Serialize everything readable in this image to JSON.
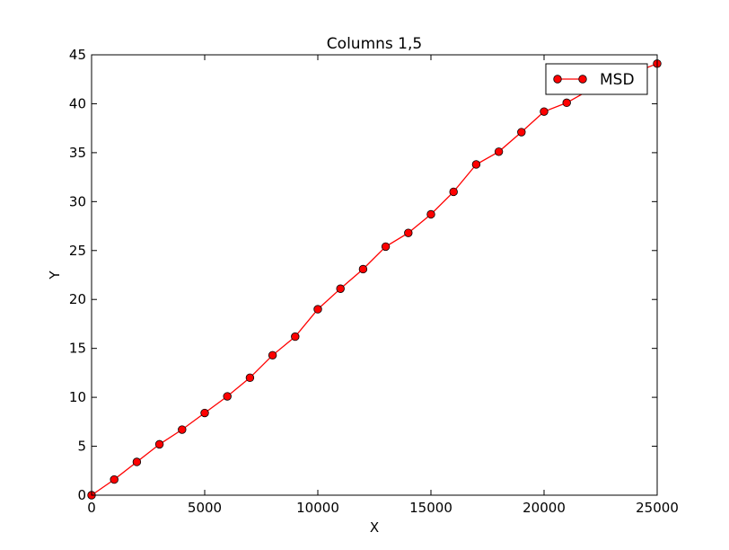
{
  "chart_data": {
    "type": "line",
    "title": "Columns 1,5",
    "xlabel": "X",
    "ylabel": "Y",
    "xlim": [
      0,
      25000
    ],
    "ylim": [
      0,
      45
    ],
    "xticks": [
      0,
      5000,
      10000,
      15000,
      20000,
      25000
    ],
    "yticks": [
      0,
      5,
      10,
      15,
      20,
      25,
      30,
      35,
      40,
      45
    ],
    "grid": false,
    "legend_position": "top-right",
    "series": [
      {
        "name": "MSD",
        "color": "#ff0000",
        "marker": "circle",
        "x": [
          0,
          1000,
          2000,
          3000,
          4000,
          5000,
          6000,
          7000,
          8000,
          9000,
          10000,
          11000,
          12000,
          13000,
          14000,
          15000,
          16000,
          17000,
          18000,
          19000,
          20000,
          21000,
          22000,
          23000,
          24000,
          25000
        ],
        "y": [
          0,
          1.6,
          3.4,
          5.2,
          6.7,
          8.4,
          10.1,
          12.0,
          14.3,
          16.2,
          19.0,
          21.1,
          23.1,
          25.4,
          26.8,
          28.7,
          31.0,
          33.8,
          35.1,
          37.1,
          39.2,
          40.1,
          41.4,
          42.3,
          43.2,
          44.1
        ]
      }
    ]
  }
}
